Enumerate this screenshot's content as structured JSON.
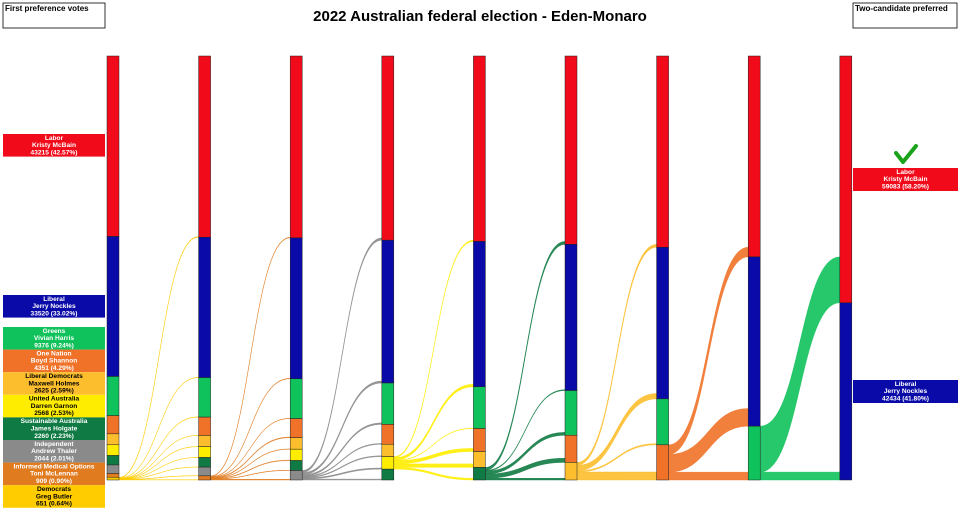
{
  "chart_data": {
    "type": "sankey",
    "title": "2022 Australian federal election - Eden-Monaro",
    "left_label": "First preference votes",
    "right_label": "Two-candidate preferred",
    "candidates": [
      {
        "party": "Labor",
        "name": "Kristy McBain",
        "vote_label": "43215 (42.57%)",
        "color": "#f00a1a"
      },
      {
        "party": "Liberal",
        "name": "Jerry Nockles",
        "vote_label": "33520 (33.02%)",
        "color": "#0a0aa8"
      },
      {
        "party": "Greens",
        "name": "Vivian Harris",
        "vote_label": "9376 (9.24%)",
        "color": "#10c25b"
      },
      {
        "party": "One Nation",
        "name": "Boyd Shannon",
        "vote_label": "4351 (4.29%)",
        "color": "#f07228"
      },
      {
        "party": "Liberal Democrats",
        "name": "Maxwell Holmes",
        "vote_label": "2625 (2.59%)",
        "color": "#fcbe2c"
      },
      {
        "party": "United Australia",
        "name": "Darren Garnon",
        "vote_label": "2568 (2.53%)",
        "color": "#ffed00"
      },
      {
        "party": "Sustainable Australia",
        "name": "James Holgate",
        "vote_label": "2260 (2.23%)",
        "color": "#0f7a43"
      },
      {
        "party": "Independent",
        "name": "Andrew Thaler",
        "vote_label": "2044 (2.01%)",
        "color": "#8a8a8a"
      },
      {
        "party": "Informed Medical Options",
        "name": "Toni McLennan",
        "vote_label": "909 (0.90%)",
        "color": "#e07b20"
      },
      {
        "party": "Democrats",
        "name": "Greg Butler",
        "vote_label": "651 (0.64%)",
        "color": "#ffcc00"
      }
    ],
    "counts": [
      [
        43215,
        33520,
        9376,
        4351,
        2625,
        2568,
        2260,
        2044,
        909,
        651
      ],
      [
        43400,
        33600,
        9460,
        4390,
        2680,
        2600,
        2300,
        2100,
        987,
        null
      ],
      [
        43560,
        33720,
        9540,
        4560,
        2760,
        2720,
        2380,
        2277,
        null,
        null
      ],
      [
        44100,
        34200,
        9900,
        4760,
        2960,
        2997,
        2600,
        null,
        null,
        null
      ],
      [
        44400,
        34800,
        10000,
        5500,
        3800,
        null,
        3017,
        null,
        null,
        null
      ],
      [
        45100,
        35000,
        10700,
        6500,
        4217,
        null,
        null,
        null,
        null,
        null
      ],
      [
        45800,
        36300,
        11000,
        8417,
        null,
        null,
        null,
        null,
        null,
        null
      ],
      [
        48100,
        40534,
        12883,
        null,
        null,
        null,
        null,
        null,
        null,
        null
      ],
      [
        59083,
        42434,
        null,
        null,
        null,
        null,
        null,
        null,
        null,
        null
      ]
    ],
    "two_candidate_preferred": [
      {
        "party": "Labor",
        "name": "Kristy McBain",
        "vote_label": "59083 (58.20%)",
        "winner": true
      },
      {
        "party": "Liberal",
        "name": "Jerry Nockles",
        "vote_label": "42434 (41.80%)",
        "winner": false
      }
    ]
  }
}
